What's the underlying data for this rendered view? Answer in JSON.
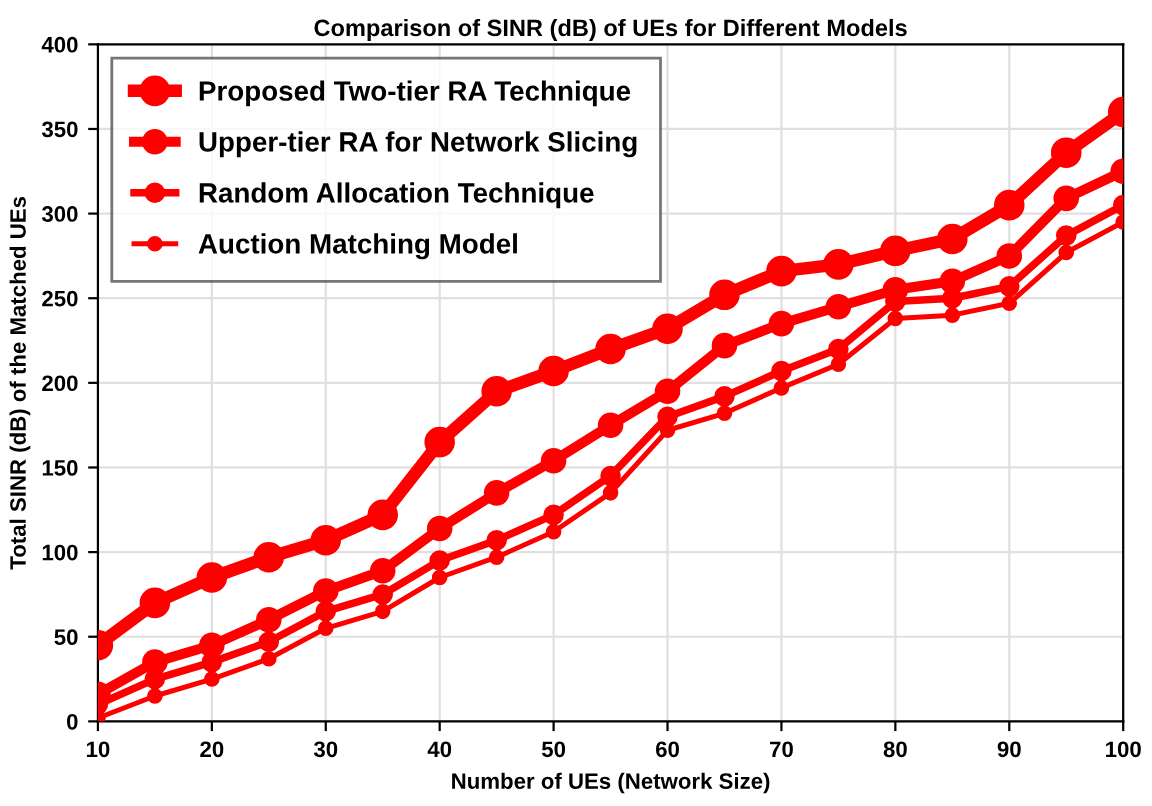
{
  "chart_data": {
    "type": "line",
    "title": "Comparison of SINR (dB) of UEs for Different Models",
    "xlabel": "Number of UEs (Network Size)",
    "ylabel": "Total SINR (dB) of the Matched UEs",
    "x": [
      10,
      15,
      20,
      25,
      30,
      35,
      40,
      45,
      50,
      55,
      60,
      65,
      70,
      75,
      80,
      85,
      90,
      95,
      100
    ],
    "series": [
      {
        "name": "Proposed Two-tier RA Technique",
        "color": "#ff0000",
        "values": [
          45,
          70,
          85,
          97,
          107,
          122,
          165,
          195,
          207,
          220,
          232,
          252,
          266,
          270,
          278,
          285,
          305,
          336,
          360
        ]
      },
      {
        "name": "Upper-tier RA for Network Slicing",
        "color": "#ff0000",
        "values": [
          16,
          35,
          45,
          60,
          77,
          89,
          114,
          135,
          154,
          175,
          195,
          222,
          235,
          245,
          255,
          260,
          275,
          309,
          325
        ]
      },
      {
        "name": "Random Allocation Technique",
        "color": "#ff0000",
        "values": [
          10,
          25,
          35,
          47,
          65,
          75,
          95,
          107,
          122,
          145,
          180,
          192,
          207,
          220,
          248,
          250,
          257,
          287,
          305
        ]
      },
      {
        "name": "Auction Matching Model",
        "color": "#ff0000",
        "values": [
          2,
          15,
          25,
          37,
          55,
          65,
          85,
          97,
          112,
          135,
          172,
          182,
          197,
          211,
          238,
          240,
          247,
          277,
          295
        ]
      }
    ],
    "xlim": [
      10,
      100
    ],
    "ylim": [
      0,
      400
    ],
    "xticks": [
      10,
      20,
      30,
      40,
      50,
      60,
      70,
      80,
      90,
      100
    ],
    "yticks": [
      0,
      50,
      100,
      150,
      200,
      250,
      300,
      350,
      400
    ],
    "grid": true,
    "legend": "top left",
    "marker": "circle",
    "line_style": "solid"
  }
}
